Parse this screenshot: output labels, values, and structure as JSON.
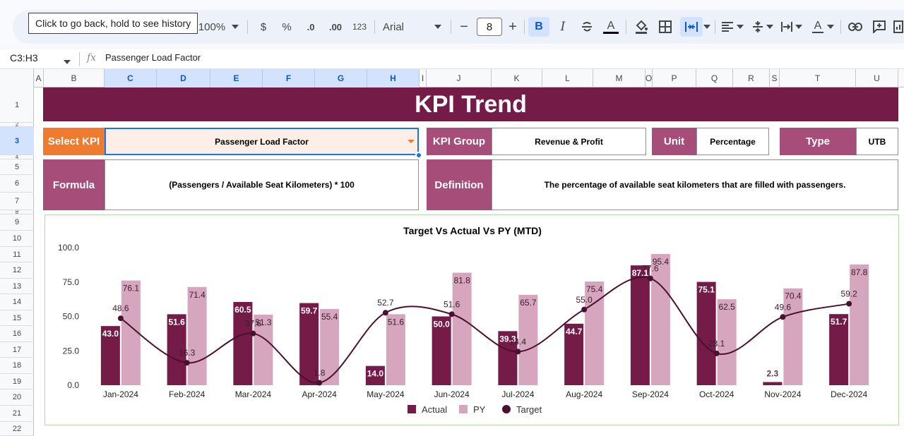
{
  "toolbar": {
    "tooltip": "Click to go back, hold to see history",
    "zoom": "100%",
    "currency": "$",
    "percent": "%",
    "decrease_decimal": ".0",
    "increase_decimal": ".00",
    "number_format": "123",
    "font_name": "Arial",
    "font_size": "8",
    "minus": "−",
    "plus": "+",
    "bold": "B",
    "italic": "I",
    "text_color_letter": "A",
    "text_rotation_letter": "A"
  },
  "formula_bar": {
    "name_box": "C3:H3",
    "fx": "fx",
    "content": "Passenger Load Factor"
  },
  "columns": [
    "A",
    "B",
    "C",
    "D",
    "E",
    "F",
    "G",
    "H",
    "I",
    "J",
    "K",
    "L",
    "M",
    "O",
    "P",
    "Q",
    "R",
    "S",
    "T",
    "U"
  ],
  "rows": [
    "1",
    "2",
    "3",
    "4",
    "5",
    "6",
    "7",
    "8",
    "9",
    "10",
    "11",
    "12",
    "13",
    "14",
    "15",
    "16",
    "17",
    "18",
    "19",
    "20",
    "21",
    "22"
  ],
  "sheet": {
    "title": "KPI Trend",
    "select_kpi_label": "Select KPI",
    "select_kpi_value": "Passenger Load Factor",
    "kpi_group_label": "KPI Group",
    "kpi_group_value": "Revenue & Profit",
    "unit_label": "Unit",
    "unit_value": "Percentage",
    "type_label": "Type",
    "type_value": "UTB",
    "formula_label": "Formula",
    "formula_value": "(Passengers / Available Seat Kilometers) * 100",
    "definition_label": "Definition",
    "definition_value": "The percentage of available seat kilometers that are filled with passengers."
  },
  "colors": {
    "title_bg": "#741b47",
    "orange_label": "#ef7b2f",
    "mauve_label": "#a64d79",
    "actual": "#741b47",
    "py": "#d5a6bd",
    "target": "#4a1031",
    "selection": "#1a73e8"
  },
  "chart_data": {
    "type": "bar",
    "title": "Target Vs Actual Vs PY (MTD)",
    "categories": [
      "Jan-2024",
      "Feb-2024",
      "Mar-2024",
      "Apr-2024",
      "May-2024",
      "Jun-2024",
      "Jul-2024",
      "Aug-2024",
      "Sep-2024",
      "Oct-2024",
      "Nov-2024",
      "Dec-2024"
    ],
    "series": [
      {
        "name": "Actual",
        "kind": "bar",
        "color": "#741b47",
        "values": [
          43.0,
          51.6,
          60.5,
          59.7,
          14.0,
          50.0,
          39.3,
          44.7,
          87.1,
          75.1,
          2.3,
          51.7
        ]
      },
      {
        "name": "PY",
        "kind": "bar",
        "color": "#d5a6bd",
        "values": [
          76.1,
          71.4,
          51.3,
          55.4,
          51.6,
          81.8,
          65.7,
          75.4,
          95.4,
          62.5,
          70.4,
          87.8
        ]
      },
      {
        "name": "Target",
        "kind": "smooth-line",
        "color": "#4a1031",
        "values": [
          48.6,
          16.3,
          37.6,
          1.8,
          52.7,
          51.6,
          24.4,
          55.0,
          77.6,
          23.1,
          49.6,
          59.2
        ]
      }
    ],
    "y_ticks": [
      "0.0",
      "25.0",
      "50.0",
      "75.0",
      "100.0"
    ],
    "ylim": [
      0,
      100
    ],
    "grid": false,
    "legend_position": "bottom"
  }
}
